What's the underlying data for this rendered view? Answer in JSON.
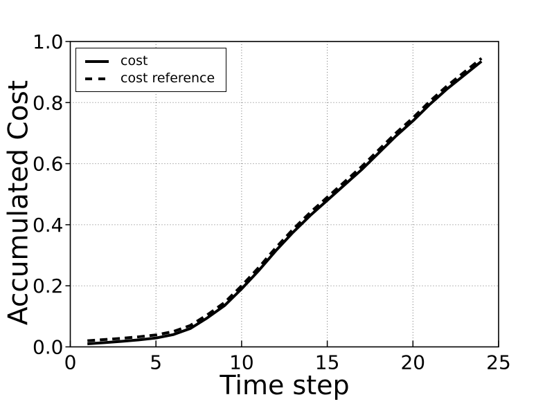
{
  "chart_data": {
    "type": "line",
    "title": "",
    "xlabel": "Time step",
    "ylabel": "Accumulated Cost",
    "xlim": [
      0,
      25
    ],
    "ylim": [
      0.0,
      1.0
    ],
    "xticks": {
      "values": [
        0,
        5,
        10,
        15,
        20,
        25
      ],
      "labels": [
        "0",
        "5",
        "10",
        "15",
        "20",
        "25"
      ]
    },
    "yticks": {
      "values": [
        0.0,
        0.2,
        0.4,
        0.6,
        0.8,
        1.0
      ],
      "labels": [
        "0.0",
        "0.2",
        "0.4",
        "0.6",
        "0.8",
        "1.0"
      ]
    },
    "grid": "dotted",
    "legend_position": "upper-left",
    "x": [
      1,
      2,
      3,
      4,
      5,
      6,
      7,
      8,
      9,
      10,
      11,
      12,
      13,
      14,
      15,
      16,
      17,
      18,
      19,
      20,
      21,
      22,
      23,
      24
    ],
    "series": [
      {
        "name": "cost",
        "line_style": "solid",
        "color": "#000000",
        "values": [
          0.01,
          0.014,
          0.018,
          0.023,
          0.029,
          0.04,
          0.06,
          0.095,
          0.135,
          0.19,
          0.25,
          0.315,
          0.375,
          0.43,
          0.48,
          0.53,
          0.58,
          0.635,
          0.69,
          0.74,
          0.795,
          0.845,
          0.89,
          0.935
        ]
      },
      {
        "name": "cost reference",
        "line_style": "dashed",
        "color": "#000000",
        "values": [
          0.02,
          0.024,
          0.028,
          0.033,
          0.039,
          0.05,
          0.07,
          0.105,
          0.145,
          0.2,
          0.26,
          0.325,
          0.385,
          0.44,
          0.49,
          0.54,
          0.59,
          0.645,
          0.7,
          0.75,
          0.805,
          0.855,
          0.9,
          0.945
        ]
      }
    ],
    "colors": {
      "line": "#000000",
      "background": "#ffffff",
      "grid": "#000000"
    }
  }
}
